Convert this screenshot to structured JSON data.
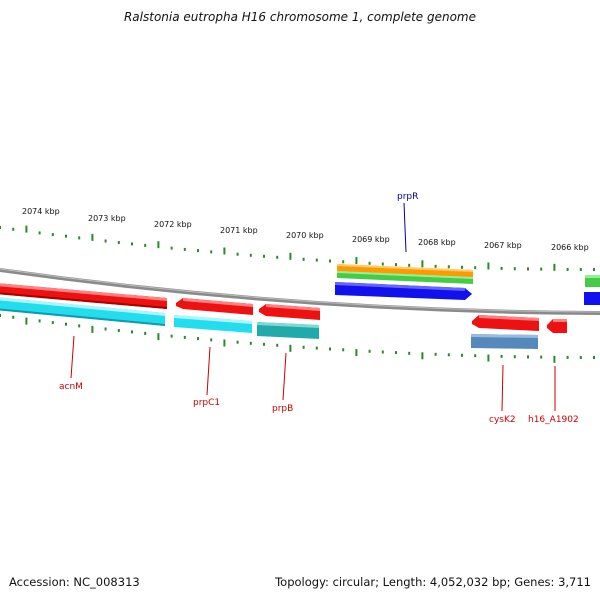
{
  "title": "Ralstonia eutropha H16 chromosome 1, complete genome",
  "footer": {
    "accession": "Accession: NC_008313",
    "summary": "Topology: circular; Length: 4,052,032 bp; Genes: 3,711"
  },
  "colors": {
    "tick": "#2a8a2a",
    "backbone": "#8a8a8a",
    "gene_label_red": "#cc0000",
    "gene_label_blue": "#000099",
    "red": "#ee1111",
    "cyan": "#22ddee",
    "teal": "#22aaaa",
    "orange": "#ff9900",
    "green": "#44cc44",
    "blue": "#1111ee",
    "steel": "#5588bb"
  },
  "scale_labels": [
    "2074 kbp",
    "2073 kbp",
    "2072 kbp",
    "2071 kbp",
    "2070 kbp",
    "2069 kbp",
    "2068 kbp",
    "2067 kbp",
    "2066 kbp"
  ],
  "gene_labels": [
    {
      "name": "acnM",
      "color": "red"
    },
    {
      "name": "prpC1",
      "color": "red"
    },
    {
      "name": "prpB",
      "color": "red"
    },
    {
      "name": "prpR",
      "color": "blue"
    },
    {
      "name": "cysK2",
      "color": "red"
    },
    {
      "name": "h16_A1902",
      "color": "red"
    }
  ]
}
